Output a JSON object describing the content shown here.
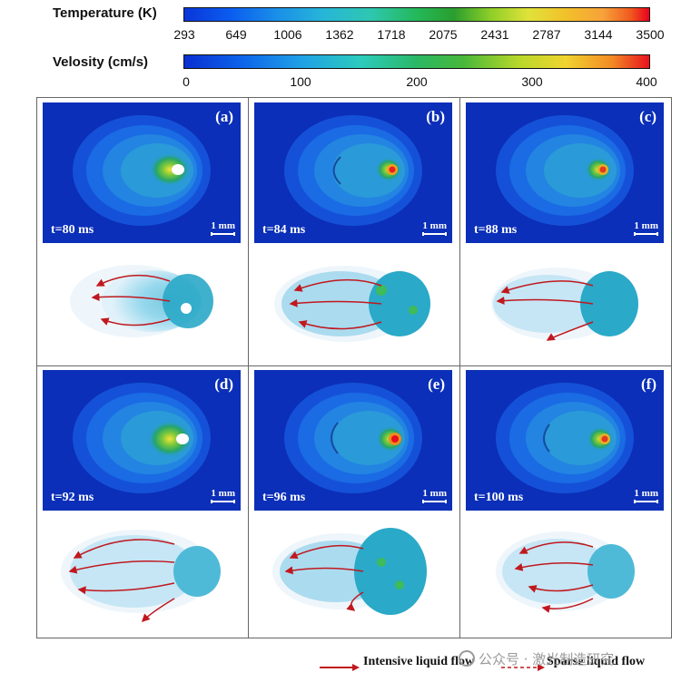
{
  "colorbars": {
    "temperature": {
      "title": "Temperature (K)",
      "ticks": [
        "293",
        "649",
        "1006",
        "1362",
        "1718",
        "2075",
        "2431",
        "2787",
        "3144",
        "3500"
      ]
    },
    "velocity": {
      "title": "Velosity (cm/s)",
      "ticks": [
        "0",
        "100",
        "200",
        "300",
        "400"
      ]
    }
  },
  "panels": [
    {
      "label": "(a)",
      "time": "t=80 ms",
      "scale": "1 mm",
      "hotspot": "white"
    },
    {
      "label": "(b)",
      "time": "t=84 ms",
      "scale": "1 mm",
      "hotspot": "red"
    },
    {
      "label": "(c)",
      "time": "t=88 ms",
      "scale": "1 mm",
      "hotspot": "red"
    },
    {
      "label": "(d)",
      "time": "t=92 ms",
      "scale": "1 mm",
      "hotspot": "white"
    },
    {
      "label": "(e)",
      "time": "t=96 ms",
      "scale": "1 mm",
      "hotspot": "red"
    },
    {
      "label": "(f)",
      "time": "t=100 ms",
      "scale": "1 mm",
      "hotspot": "red"
    }
  ],
  "legend": {
    "intensive": "Intensive liquid flow",
    "sparse": "Sparse liquid flow",
    "arrow_color": "#c0181e"
  },
  "watermark": "公众号 · 激光制造研究"
}
